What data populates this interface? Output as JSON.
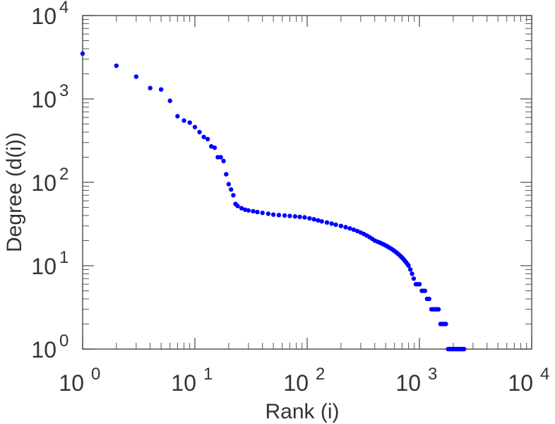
{
  "chart_data": {
    "type": "scatter",
    "title": "",
    "xlabel": "Rank (i)",
    "ylabel": "Degree (d(i))",
    "xscale": "log",
    "yscale": "log",
    "xlim": [
      1,
      10000
    ],
    "ylim": [
      1,
      10000
    ],
    "grid": false,
    "legend": "none",
    "marker_color": "#0000ff",
    "x_ticks": [
      {
        "base": "10",
        "exp": "0",
        "value": 1
      },
      {
        "base": "10",
        "exp": "1",
        "value": 10
      },
      {
        "base": "10",
        "exp": "2",
        "value": 100
      },
      {
        "base": "10",
        "exp": "3",
        "value": 1000
      },
      {
        "base": "10",
        "exp": "4",
        "value": 10000
      }
    ],
    "y_ticks": [
      {
        "base": "10",
        "exp": "0",
        "value": 1
      },
      {
        "base": "10",
        "exp": "1",
        "value": 10
      },
      {
        "base": "10",
        "exp": "2",
        "value": 100
      },
      {
        "base": "10",
        "exp": "3",
        "value": 1000
      },
      {
        "base": "10",
        "exp": "4",
        "value": 10000
      }
    ],
    "series": [
      {
        "points": [
          [
            1,
            3500
          ],
          [
            2,
            2500
          ],
          [
            3,
            1850
          ],
          [
            4,
            1350
          ],
          [
            5,
            1300
          ],
          [
            6,
            950
          ],
          [
            7,
            620
          ],
          [
            8,
            550
          ],
          [
            9,
            520
          ],
          [
            10,
            460
          ],
          [
            11,
            400
          ],
          [
            12,
            350
          ],
          [
            13,
            330
          ],
          [
            14,
            270
          ],
          [
            15,
            260
          ],
          [
            16,
            200
          ],
          [
            17,
            200
          ],
          [
            18,
            180
          ],
          [
            19,
            125
          ],
          [
            20,
            95
          ],
          [
            21,
            82
          ],
          [
            22,
            70
          ],
          [
            23,
            55
          ],
          [
            24,
            52
          ],
          [
            26,
            49
          ],
          [
            28,
            47
          ],
          [
            30,
            46
          ],
          [
            33,
            45
          ],
          [
            36,
            44
          ],
          [
            40,
            43
          ],
          [
            45,
            42
          ],
          [
            50,
            41
          ],
          [
            56,
            40.5
          ],
          [
            63,
            40
          ],
          [
            70,
            39.5
          ],
          [
            78,
            39
          ],
          [
            86,
            38.5
          ],
          [
            95,
            38
          ],
          [
            105,
            37
          ],
          [
            115,
            36
          ],
          [
            125,
            35
          ],
          [
            135,
            34
          ],
          [
            150,
            33
          ],
          [
            165,
            32
          ],
          [
            180,
            31
          ],
          [
            200,
            30
          ],
          [
            220,
            29
          ],
          [
            240,
            28
          ],
          [
            260,
            27
          ],
          [
            280,
            26
          ],
          [
            300,
            25
          ],
          [
            320,
            24
          ],
          [
            340,
            23
          ],
          [
            360,
            22
          ],
          [
            380,
            21
          ],
          [
            400,
            20
          ],
          [
            420,
            19.5
          ],
          [
            440,
            19
          ],
          [
            460,
            18.5
          ],
          [
            480,
            18
          ],
          [
            500,
            17.5
          ],
          [
            520,
            17
          ],
          [
            540,
            16.5
          ],
          [
            560,
            16
          ],
          [
            580,
            15.5
          ],
          [
            600,
            15
          ],
          [
            620,
            14.5
          ],
          [
            640,
            14
          ],
          [
            660,
            13.5
          ],
          [
            680,
            13
          ],
          [
            700,
            12.5
          ],
          [
            720,
            12
          ],
          [
            740,
            11.5
          ],
          [
            760,
            11
          ],
          [
            780,
            10.5
          ],
          [
            800,
            10
          ],
          [
            830,
            9
          ],
          [
            860,
            8
          ],
          [
            890,
            7
          ],
          [
            930,
            6
          ],
          [
            960,
            6
          ],
          [
            1000,
            6
          ],
          [
            1050,
            5
          ],
          [
            1080,
            5
          ],
          [
            1120,
            5
          ],
          [
            1170,
            4
          ],
          [
            1220,
            4
          ],
          [
            1280,
            3
          ],
          [
            1330,
            3
          ],
          [
            1380,
            3
          ],
          [
            1430,
            3
          ],
          [
            1480,
            3
          ],
          [
            1540,
            2
          ],
          [
            1600,
            2
          ],
          [
            1660,
            2
          ],
          [
            1720,
            2
          ],
          [
            1800,
            1
          ],
          [
            1850,
            1
          ],
          [
            1900,
            1
          ],
          [
            1950,
            1
          ],
          [
            2000,
            1
          ],
          [
            2050,
            1
          ],
          [
            2100,
            1
          ],
          [
            2150,
            1
          ],
          [
            2200,
            1
          ],
          [
            2260,
            1
          ],
          [
            2320,
            1
          ],
          [
            2380,
            1
          ],
          [
            2440,
            1
          ],
          [
            2500,
            1
          ]
        ]
      }
    ]
  }
}
